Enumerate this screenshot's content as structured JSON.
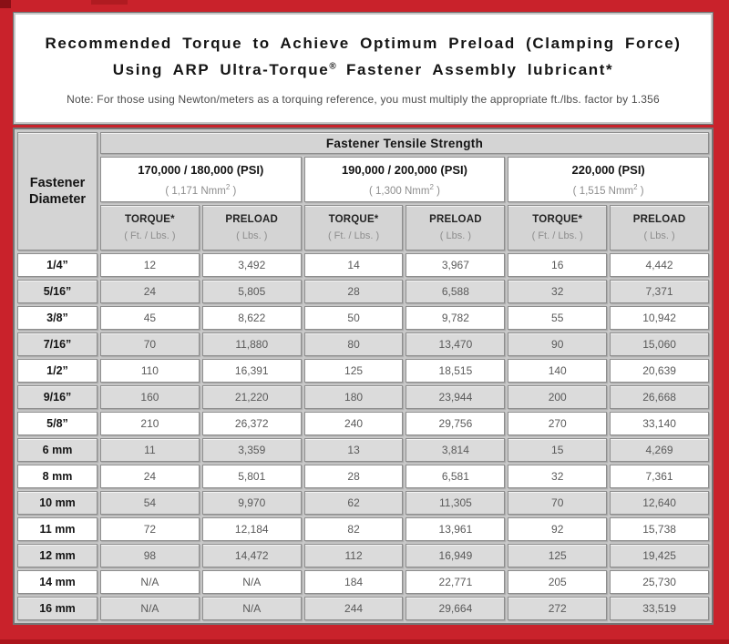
{
  "colors": {
    "border_red": "#c9222b",
    "dark_red_corner": "#8a1016",
    "bottom_strip_red": "#ab151c",
    "header_gray": "#d4d4d4",
    "row_alt_gray": "#dbdbdb",
    "value_text_gray": "#5a5a5a"
  },
  "chart_data": {
    "type": "table",
    "title": "Recommended Torque to Achieve Optimum Preload (Clamping Force)",
    "title_line2": {
      "prefix": "Using ARP Ultra-Torque",
      "sup": "®",
      "suffix": " Fastener Assembly lubricant*"
    },
    "note": "Note: For those using Newton/meters as a torquing reference, you must multiply the appropriate ft./lbs. factor by 1.356",
    "corner_header": {
      "line1": "Fastener",
      "line2": "Diameter"
    },
    "group_header": "Fastener Tensile Strength",
    "tensile_groups": [
      {
        "psi": "170,000 / 180,000 (PSI)",
        "nmm": {
          "prefix": "( 1,171 Nmm",
          "sup": "2",
          "suffix": " )"
        }
      },
      {
        "psi": "190,000 / 200,000 (PSI)",
        "nmm": {
          "prefix": "( 1,300 Nmm",
          "sup": "2",
          "suffix": " )"
        }
      },
      {
        "psi": "220,000 (PSI)",
        "nmm": {
          "prefix": "( 1,515 Nmm",
          "sup": "2",
          "suffix": " )"
        }
      }
    ],
    "sub_columns": [
      {
        "label": "TORQUE*",
        "unit": "( Ft. / Lbs. )"
      },
      {
        "label": "PRELOAD",
        "unit": "( Lbs. )"
      },
      {
        "label": "TORQUE*",
        "unit": "( Ft. / Lbs. )"
      },
      {
        "label": "PRELOAD",
        "unit": "( Lbs. )"
      },
      {
        "label": "TORQUE*",
        "unit": "( Ft. / Lbs. )"
      },
      {
        "label": "PRELOAD",
        "unit": "( Lbs. )"
      }
    ],
    "rows": [
      {
        "diameter": "1/4”",
        "values": [
          "12",
          "3,492",
          "14",
          "3,967",
          "16",
          "4,442"
        ]
      },
      {
        "diameter": "5/16”",
        "values": [
          "24",
          "5,805",
          "28",
          "6,588",
          "32",
          "7,371"
        ]
      },
      {
        "diameter": "3/8”",
        "values": [
          "45",
          "8,622",
          "50",
          "9,782",
          "55",
          "10,942"
        ]
      },
      {
        "diameter": "7/16”",
        "values": [
          "70",
          "11,880",
          "80",
          "13,470",
          "90",
          "15,060"
        ]
      },
      {
        "diameter": "1/2”",
        "values": [
          "110",
          "16,391",
          "125",
          "18,515",
          "140",
          "20,639"
        ]
      },
      {
        "diameter": "9/16”",
        "values": [
          "160",
          "21,220",
          "180",
          "23,944",
          "200",
          "26,668"
        ]
      },
      {
        "diameter": "5/8”",
        "values": [
          "210",
          "26,372",
          "240",
          "29,756",
          "270",
          "33,140"
        ]
      },
      {
        "diameter": "6 mm",
        "values": [
          "11",
          "3,359",
          "13",
          "3,814",
          "15",
          "4,269"
        ]
      },
      {
        "diameter": "8 mm",
        "values": [
          "24",
          "5,801",
          "28",
          "6,581",
          "32",
          "7,361"
        ]
      },
      {
        "diameter": "10 mm",
        "values": [
          "54",
          "9,970",
          "62",
          "11,305",
          "70",
          "12,640"
        ]
      },
      {
        "diameter": "11 mm",
        "values": [
          "72",
          "12,184",
          "82",
          "13,961",
          "92",
          "15,738"
        ]
      },
      {
        "diameter": "12 mm",
        "values": [
          "98",
          "14,472",
          "112",
          "16,949",
          "125",
          "19,425"
        ]
      },
      {
        "diameter": "14 mm",
        "values": [
          "N/A",
          "N/A",
          "184",
          "22,771",
          "205",
          "25,730"
        ]
      },
      {
        "diameter": "16 mm",
        "values": [
          "N/A",
          "N/A",
          "244",
          "29,664",
          "272",
          "33,519"
        ]
      }
    ]
  }
}
